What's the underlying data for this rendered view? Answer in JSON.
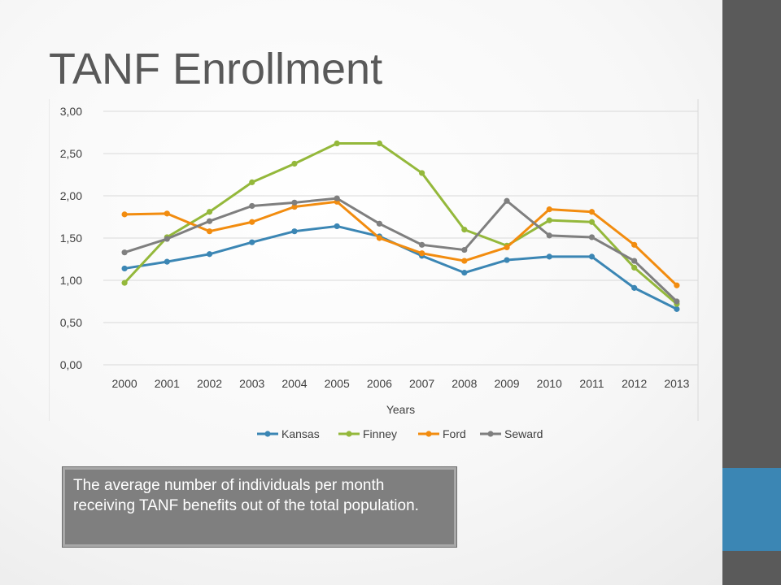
{
  "slide": {
    "title": "TANF Enrollment",
    "callout": "The average number of individuals per month receiving TANF benefits out of the total population."
  },
  "colors": {
    "sidebar": "#5a5a5a",
    "accent": "#3b86b4"
  },
  "chart_data": {
    "type": "line",
    "title": "",
    "xlabel": "Years",
    "ylabel": "",
    "categories": [
      "2000",
      "2001",
      "2002",
      "2003",
      "2004",
      "2005",
      "2006",
      "2007",
      "2008",
      "2009",
      "2010",
      "2011",
      "2012",
      "2013"
    ],
    "ylim": [
      0,
      3
    ],
    "yticks": [
      "0,00",
      "0,50",
      "1,00",
      "1,50",
      "2,00",
      "2,50",
      "3,00"
    ],
    "grid": true,
    "legend": "bottom",
    "series": [
      {
        "name": "Kansas",
        "color": "#3b86b4",
        "values": [
          1.14,
          1.22,
          1.31,
          1.45,
          1.58,
          1.64,
          1.52,
          1.29,
          1.09,
          1.24,
          1.28,
          1.28,
          0.91,
          0.66
        ]
      },
      {
        "name": "Finney",
        "color": "#94b83b",
        "values": [
          0.97,
          1.51,
          1.81,
          2.16,
          2.38,
          2.62,
          2.62,
          2.27,
          1.6,
          1.41,
          1.71,
          1.69,
          1.15,
          0.72
        ]
      },
      {
        "name": "Ford",
        "color": "#f28c0f",
        "values": [
          1.78,
          1.79,
          1.58,
          1.69,
          1.87,
          1.93,
          1.5,
          1.32,
          1.23,
          1.39,
          1.84,
          1.81,
          1.42,
          0.94
        ]
      },
      {
        "name": "Seward",
        "color": "#7f7f7f",
        "values": [
          1.33,
          1.49,
          1.7,
          1.88,
          1.92,
          1.97,
          1.67,
          1.42,
          1.36,
          1.94,
          1.53,
          1.51,
          1.23,
          0.75
        ]
      }
    ]
  }
}
